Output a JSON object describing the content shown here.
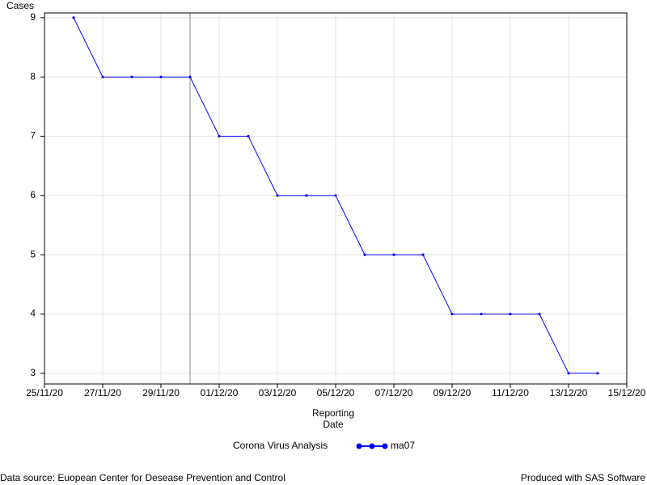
{
  "chart_data": {
    "type": "line",
    "ylabel": "Cases",
    "xlabel": "Reporting Date",
    "x": [
      "26/11/20",
      "27/11/20",
      "28/11/20",
      "29/11/20",
      "30/11/20",
      "01/12/20",
      "02/12/20",
      "03/12/20",
      "04/12/20",
      "05/12/20",
      "06/12/20",
      "07/12/20",
      "08/12/20",
      "09/12/20",
      "10/12/20",
      "11/12/20",
      "12/12/20",
      "13/12/20",
      "14/12/20"
    ],
    "series": [
      {
        "name": "ma07",
        "color": "#0000ff",
        "values": [
          9,
          8,
          8,
          8,
          8,
          7,
          7,
          6,
          6,
          6,
          5,
          5,
          5,
          4,
          4,
          4,
          4,
          3,
          3
        ]
      }
    ],
    "xlim": [
      "25/11/20",
      "15/12/20"
    ],
    "xticks": [
      "25/11/20",
      "27/11/20",
      "29/11/20",
      "01/12/20",
      "03/12/20",
      "05/12/20",
      "07/12/20",
      "09/12/20",
      "11/12/20",
      "13/12/20",
      "15/12/20"
    ],
    "ylim": [
      2.82,
      9.08
    ],
    "yticks": [
      3,
      4,
      5,
      6,
      7,
      8,
      9
    ],
    "grid": true,
    "refline": "30/11/20",
    "legend_title": "Corona Virus Analysis",
    "footnote_left": "Data source: Euopean Center for Desease Prevention and Control",
    "footnote_right": "Produced with SAS Software"
  }
}
